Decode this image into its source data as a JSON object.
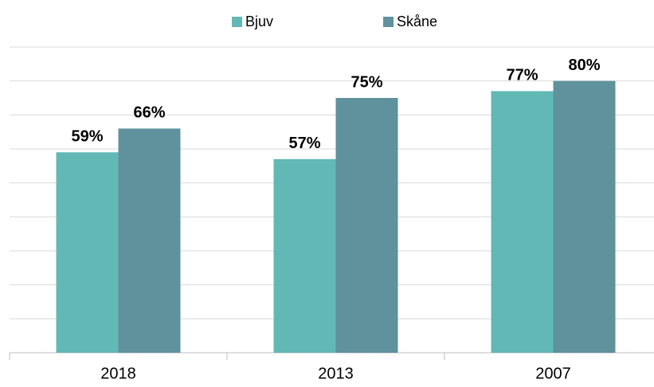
{
  "chart_data": {
    "type": "bar",
    "categories": [
      "2018",
      "2013",
      "2007"
    ],
    "series": [
      {
        "name": "Bjuv",
        "color": "#62b8b5",
        "values": [
          59,
          57,
          77
        ],
        "value_labels": [
          "59%",
          "57%",
          "77%"
        ]
      },
      {
        "name": "Skåne",
        "color": "#5f929c",
        "values": [
          66,
          75,
          80
        ],
        "value_labels": [
          "66%",
          "75%",
          "80%"
        ]
      }
    ],
    "ylim": [
      0,
      90
    ],
    "yticks": [
      0,
      10,
      20,
      30,
      40,
      50,
      60,
      70,
      80,
      90
    ],
    "grid": true,
    "legend": "top"
  }
}
